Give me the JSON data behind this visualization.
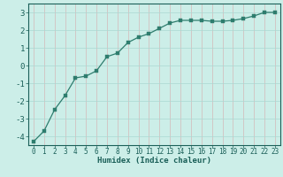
{
  "xlabel": "Humidex (Indice chaleur)",
  "x": [
    0,
    1,
    2,
    3,
    4,
    5,
    6,
    7,
    8,
    9,
    10,
    11,
    12,
    13,
    14,
    15,
    16,
    17,
    18,
    19,
    20,
    21,
    22,
    23
  ],
  "y": [
    -4.3,
    -3.7,
    -2.5,
    -1.7,
    -0.7,
    -0.6,
    -0.3,
    0.5,
    0.7,
    1.3,
    1.6,
    1.8,
    2.1,
    2.4,
    2.55,
    2.55,
    2.55,
    2.5,
    2.5,
    2.55,
    2.65,
    2.8,
    3.0,
    3.0
  ],
  "line_color": "#2e7d6e",
  "marker_color": "#2e7d6e",
  "bg_color": "#cceee8",
  "minor_grid_color": "#aad8d2",
  "major_grid_color": "#d4b8b8",
  "tick_color": "#1a5f58",
  "spine_color": "#1a5f58",
  "ylim": [
    -4.5,
    3.5
  ],
  "xlim": [
    -0.5,
    23.5
  ],
  "yticks": [
    -4,
    -3,
    -2,
    -1,
    0,
    1,
    2,
    3
  ],
  "xticks": [
    0,
    1,
    2,
    3,
    4,
    5,
    6,
    7,
    8,
    9,
    10,
    11,
    12,
    13,
    14,
    15,
    16,
    17,
    18,
    19,
    20,
    21,
    22,
    23
  ],
  "xlabel_fontsize": 6.5,
  "tick_fontsize": 5.5,
  "ytick_fontsize": 6.5,
  "linewidth": 0.9,
  "markersize": 2.2
}
